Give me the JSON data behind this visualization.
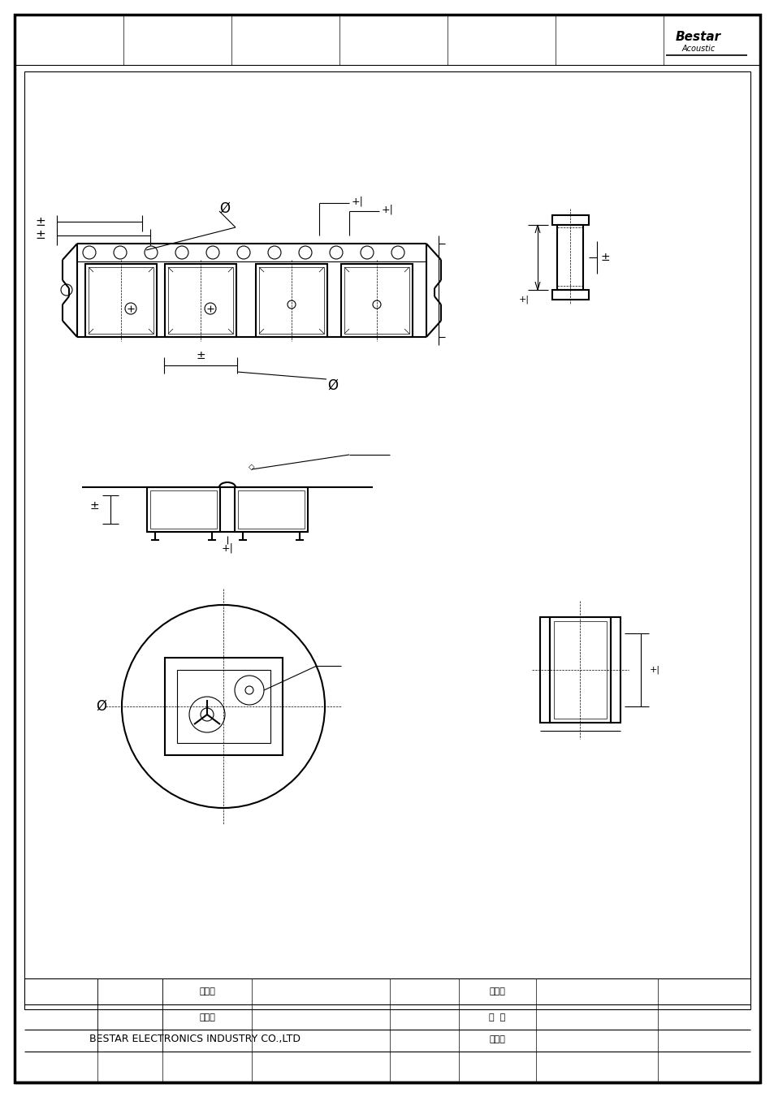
{
  "bg_color": "#ffffff",
  "line_color": "#000000",
  "title": "BESTAR ELECTRONICS INDUSTRY CO.,LTD",
  "table_rows": [
    [
      "魏布玲",
      "魏布玲"
    ],
    [
      "魏布玲",
      "徐  波"
    ],
    [
      "",
      "王文邦"
    ]
  ],
  "dim_symbol_pm": "±",
  "dim_symbol_phi": "Ø"
}
